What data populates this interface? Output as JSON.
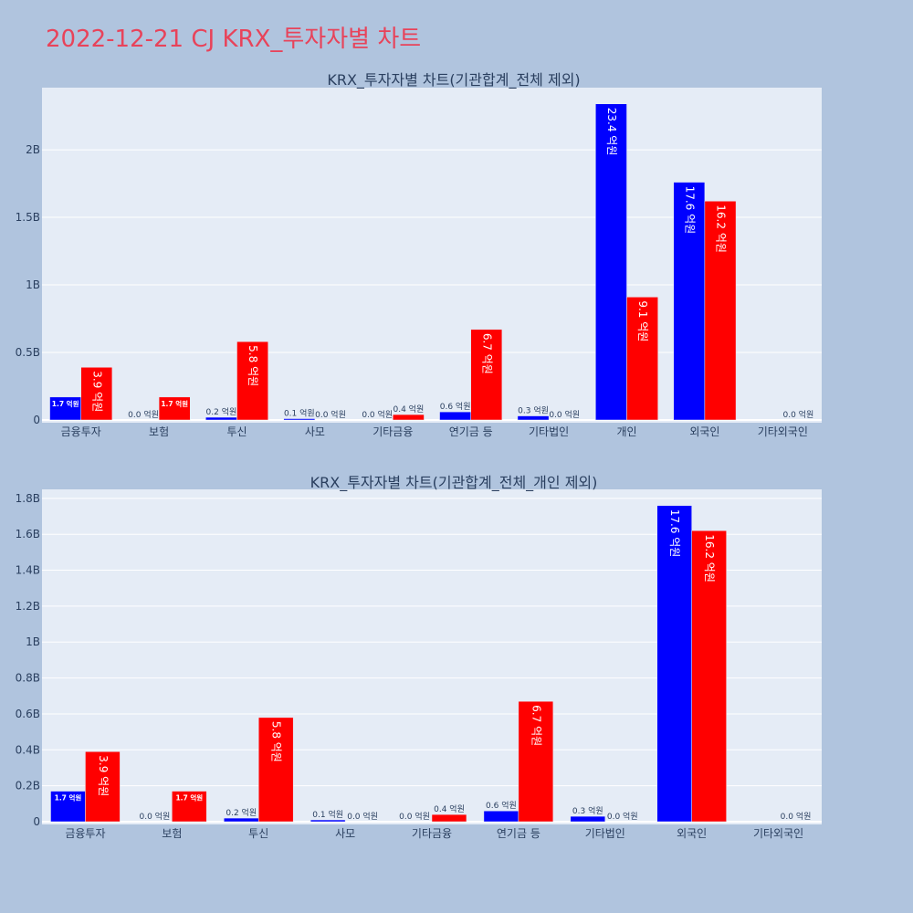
{
  "page": {
    "title": "2022-12-21 CJ KRX_투자자별 차트"
  },
  "colors": {
    "background": "#b0c4de",
    "plot_background": "#e5ecf6",
    "title": "#e8435a",
    "text": "#2a3f5f",
    "series_buy": "#0000ff",
    "series_sell": "#ff0000"
  },
  "chart_data": [
    {
      "type": "bar",
      "title": "KRX_투자자별 차트(기관합계_전체 제외)",
      "categories": [
        "금융투자",
        "보험",
        "투신",
        "사모",
        "기타금융",
        "연기금 등",
        "기타법인",
        "개인",
        "외국인",
        "기타외국인"
      ],
      "series": [
        {
          "color": "#0000ff",
          "values": [
            170000000,
            0,
            20000000,
            10000000,
            0,
            60000000,
            30000000,
            2340000000,
            1760000000,
            0
          ],
          "labels": [
            "1.7 억원",
            "0.0 억원",
            "0.2 억원",
            "0.1 억원",
            "0.0 억원",
            "0.6 억원",
            "0.3 억원",
            "23.4 억원",
            "17.6 억원",
            ""
          ]
        },
        {
          "color": "#ff0000",
          "values": [
            390000000,
            170000000,
            580000000,
            0,
            40000000,
            670000000,
            0,
            910000000,
            1620000000,
            0
          ],
          "labels": [
            "3.9 억원",
            "1.7 억원",
            "5.8 억원",
            "0.0 억원",
            "0.4 억원",
            "6.7 억원",
            "0.0 억원",
            "9.1 억원",
            "16.2 억원",
            "0.0 억원"
          ]
        }
      ],
      "ylim": [
        0,
        2460000000
      ],
      "yticks": [
        {
          "value": 0,
          "label": "0"
        },
        {
          "value": 500000000,
          "label": "0.5B"
        },
        {
          "value": 1000000000,
          "label": "1B"
        },
        {
          "value": 1500000000,
          "label": "1.5B"
        },
        {
          "value": 2000000000,
          "label": "2B"
        }
      ],
      "grid": true
    },
    {
      "type": "bar",
      "title": "KRX_투자자별 차트(기관합계_전체_개인 제외)",
      "categories": [
        "금융투자",
        "보험",
        "투신",
        "사모",
        "기타금융",
        "연기금 등",
        "기타법인",
        "외국인",
        "기타외국인"
      ],
      "series": [
        {
          "color": "#0000ff",
          "values": [
            170000000,
            0,
            20000000,
            10000000,
            0,
            60000000,
            30000000,
            1760000000,
            0
          ],
          "labels": [
            "1.7 억원",
            "0.0 억원",
            "0.2 억원",
            "0.1 억원",
            "0.0 억원",
            "0.6 억원",
            "0.3 억원",
            "17.6 억원",
            ""
          ]
        },
        {
          "color": "#ff0000",
          "values": [
            390000000,
            170000000,
            580000000,
            0,
            40000000,
            670000000,
            0,
            1620000000,
            0
          ],
          "labels": [
            "3.9 억원",
            "1.7 억원",
            "5.8 억원",
            "0.0 억원",
            "0.4 억원",
            "6.7 억원",
            "0.0 억원",
            "16.2 억원",
            "0.0 억원"
          ]
        }
      ],
      "ylim": [
        0,
        1850000000
      ],
      "yticks": [
        {
          "value": 0,
          "label": "0"
        },
        {
          "value": 200000000,
          "label": "0.2B"
        },
        {
          "value": 400000000,
          "label": "0.4B"
        },
        {
          "value": 600000000,
          "label": "0.6B"
        },
        {
          "value": 800000000,
          "label": "0.8B"
        },
        {
          "value": 1000000000,
          "label": "1B"
        },
        {
          "value": 1200000000,
          "label": "1.2B"
        },
        {
          "value": 1400000000,
          "label": "1.4B"
        },
        {
          "value": 1600000000,
          "label": "1.6B"
        },
        {
          "value": 1800000000,
          "label": "1.8B"
        }
      ],
      "grid": true
    }
  ]
}
